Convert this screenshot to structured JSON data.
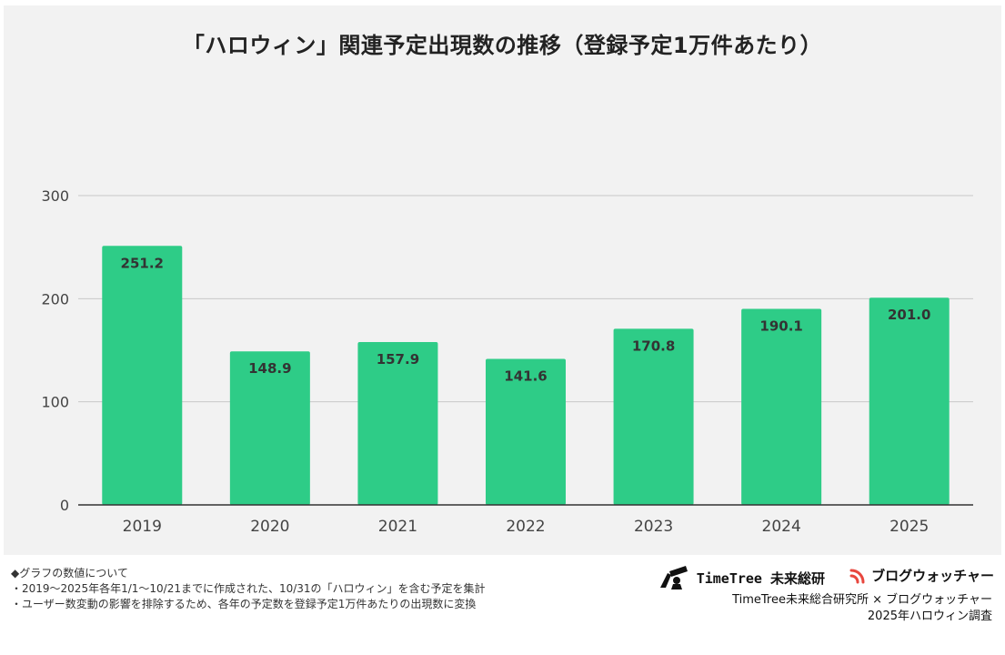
{
  "chart_data": {
    "type": "bar",
    "title": "「ハロウィン」関連予定出現数の推移（登録予定1万件あたり）",
    "xlabel": "",
    "ylabel": "",
    "categories": [
      "2019",
      "2020",
      "2021",
      "2022",
      "2023",
      "2024",
      "2025"
    ],
    "values": [
      251.2,
      148.9,
      157.9,
      141.6,
      170.8,
      190.1,
      201.0
    ],
    "value_labels": [
      "251.2",
      "148.9",
      "157.9",
      "141.6",
      "170.8",
      "190.1",
      "201.0"
    ],
    "ylim": [
      0,
      300
    ],
    "yticks": [
      "0",
      "100",
      "200",
      "300"
    ],
    "grid": true,
    "bar_color": "#2ecc87",
    "background": "#f2f2f2"
  },
  "notes": {
    "heading": "◆グラフの数値について",
    "line1": "・2019～2025年各年1/1～10/21までに作成された、10/31の「ハロウィン」を含む予定を集計",
    "line2": "・ユーザー数変動の影響を排除するため、各年の予定数を登録予定1万件あたりの出現数に変換"
  },
  "brands": {
    "timetree": "TimeTree 未来総研",
    "timetree_icon": "telescope-figure-icon",
    "blogwatcher": "ブログウォッチャー",
    "blogwatcher_icon": "signal-arcs-icon",
    "blogwatcher_color": "#e8473e"
  },
  "credit": {
    "line1": "TimeTree未来総合研究所 × ブログウォッチャー",
    "line2": "2025年ハロウィン調査"
  }
}
